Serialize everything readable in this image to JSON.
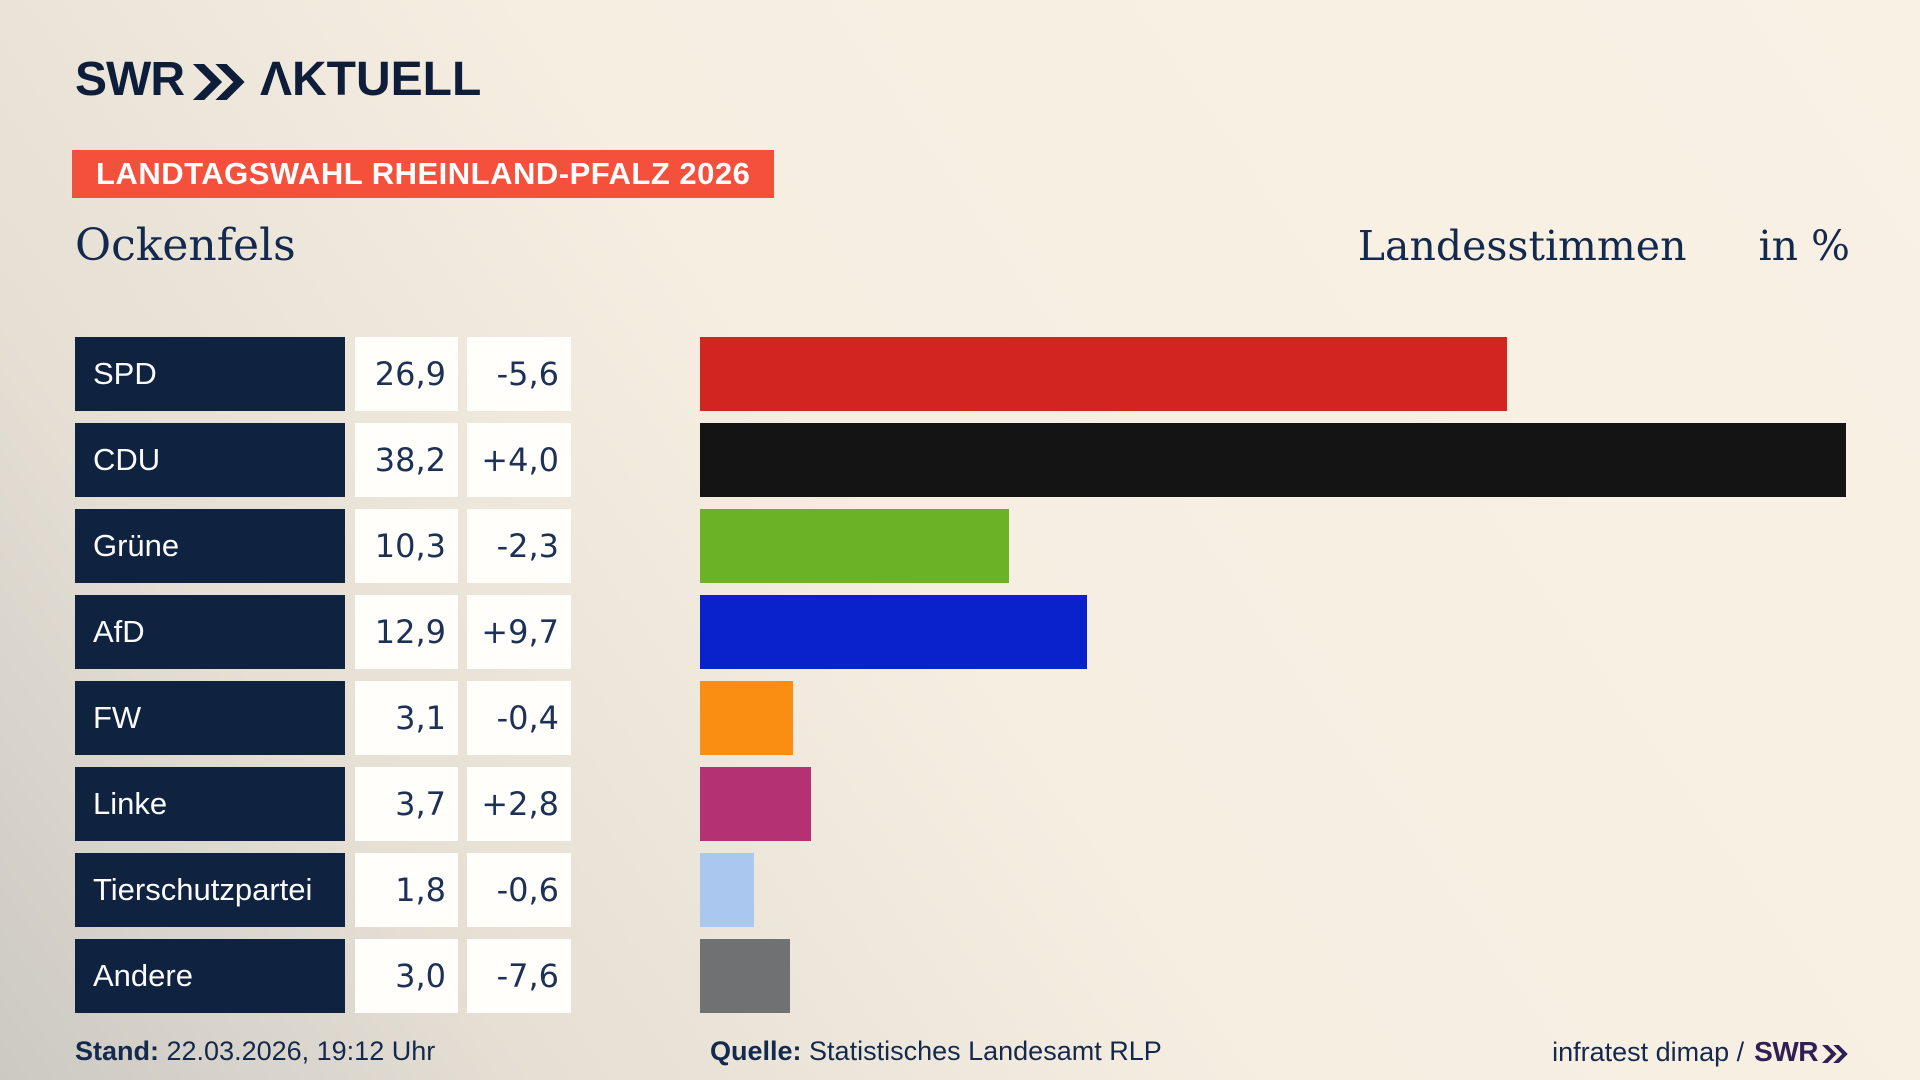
{
  "brand": {
    "logo_swr": "SWR",
    "logo_aktuell": "ΛKTUELL"
  },
  "banner": {
    "text": "LANDTAGSWAHL RHEINLAND-PFALZ 2026",
    "bg_color": "#f4503c"
  },
  "header": {
    "municipality": "Ockenfels",
    "measure": "Landesstimmen",
    "unit": "in %"
  },
  "chart_data": {
    "type": "bar",
    "orientation": "horizontal",
    "title": "Landtagswahl Rheinland-Pfalz 2026 — Ockenfels, Landesstimmen in %",
    "categories": [
      "SPD",
      "CDU",
      "Grüne",
      "AfD",
      "FW",
      "Linke",
      "Tierschutzpartei",
      "Andere"
    ],
    "series": [
      {
        "name": "Landesstimmen in %",
        "values": [
          26.9,
          38.2,
          10.3,
          12.9,
          3.1,
          3.7,
          1.8,
          3.0
        ]
      },
      {
        "name": "Veränderung",
        "values": [
          -5.6,
          4.0,
          -2.3,
          9.7,
          -0.4,
          2.8,
          -0.6,
          -7.6
        ]
      }
    ],
    "xlim": [
      0,
      40.67
    ],
    "grid": false,
    "legend": "none",
    "bar_colors": [
      "#d2251f",
      "#141414",
      "#6bb324",
      "#0a22cc",
      "#f98e12",
      "#b43273",
      "#a9c7ef",
      "#707172"
    ]
  },
  "rows": [
    {
      "party": "SPD",
      "value": 26.9,
      "value_label": "26,9",
      "change_label": "-5,6",
      "color": "#d2251f"
    },
    {
      "party": "CDU",
      "value": 38.2,
      "value_label": "38,2",
      "change_label": "+4,0",
      "color": "#141414"
    },
    {
      "party": "Grüne",
      "value": 10.3,
      "value_label": "10,3",
      "change_label": "-2,3",
      "color": "#6bb324"
    },
    {
      "party": "AfD",
      "value": 12.9,
      "value_label": "12,9",
      "change_label": "+9,7",
      "color": "#0a22cc"
    },
    {
      "party": "FW",
      "value": 3.1,
      "value_label": "3,1",
      "change_label": "-0,4",
      "color": "#f98e12"
    },
    {
      "party": "Linke",
      "value": 3.7,
      "value_label": "3,7",
      "change_label": "+2,8",
      "color": "#b43273"
    },
    {
      "party": "Tierschutzpartei",
      "value": 1.8,
      "value_label": "1,8",
      "change_label": "-0,6",
      "color": "#a9c7ef"
    },
    {
      "party": "Andere",
      "value": 3.0,
      "value_label": "3,0",
      "change_label": "-7,6",
      "color": "#707172"
    }
  ],
  "footer": {
    "stand_label": "Stand:",
    "stand_value": "22.03.2026, 19:12 Uhr",
    "quelle_label": "Quelle:",
    "quelle_value": "Statistisches Landesamt RLP",
    "credit": "infratest dimap /",
    "credit_brand": "SWR"
  },
  "colors": {
    "background_top": "#f9f1e4",
    "background_bottom_left": "#ccc9c3",
    "navy_box": "#0f2240",
    "navy_text": "#13294d",
    "value_text": "#1d3156",
    "banner_red": "#f4503c",
    "credit_brand_color": "#2e1f56"
  }
}
